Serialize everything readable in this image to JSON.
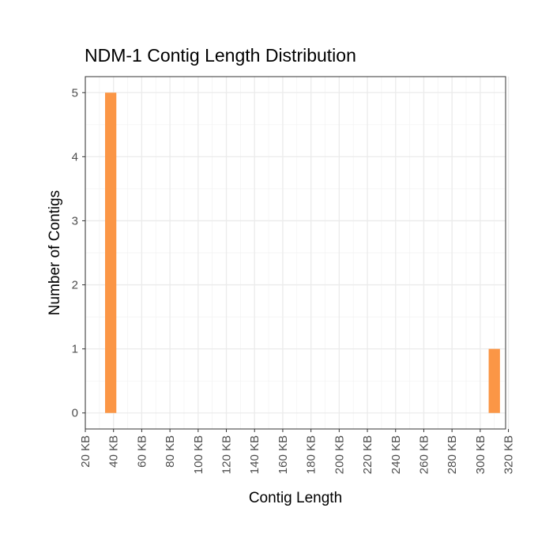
{
  "chart_data": {
    "type": "bar",
    "title": "NDM-1 Contig Length Distribution",
    "xlabel": "Contig Length",
    "ylabel": "Number of Contigs",
    "x_ticks": [
      "20 KB",
      "40 KB",
      "60 KB",
      "80 KB",
      "100 KB",
      "120 KB",
      "140 KB",
      "160 KB",
      "180 KB",
      "200 KB",
      "220 KB",
      "240 KB",
      "260 KB",
      "280 KB",
      "300 KB",
      "320 KB"
    ],
    "x_tick_values_kb": [
      20,
      40,
      60,
      80,
      100,
      120,
      140,
      160,
      180,
      200,
      220,
      240,
      260,
      280,
      300,
      320
    ],
    "y_ticks": [
      "0",
      "1",
      "2",
      "3",
      "4",
      "5"
    ],
    "xlim_kb": [
      20,
      318
    ],
    "ylim": [
      -0.25,
      5.25
    ],
    "bins": [
      {
        "start_kb": 34,
        "end_kb": 42,
        "count": 5
      },
      {
        "start_kb": 306,
        "end_kb": 314,
        "count": 1
      }
    ],
    "bar_color": "#FB9646",
    "grid": true,
    "legend": "none"
  }
}
